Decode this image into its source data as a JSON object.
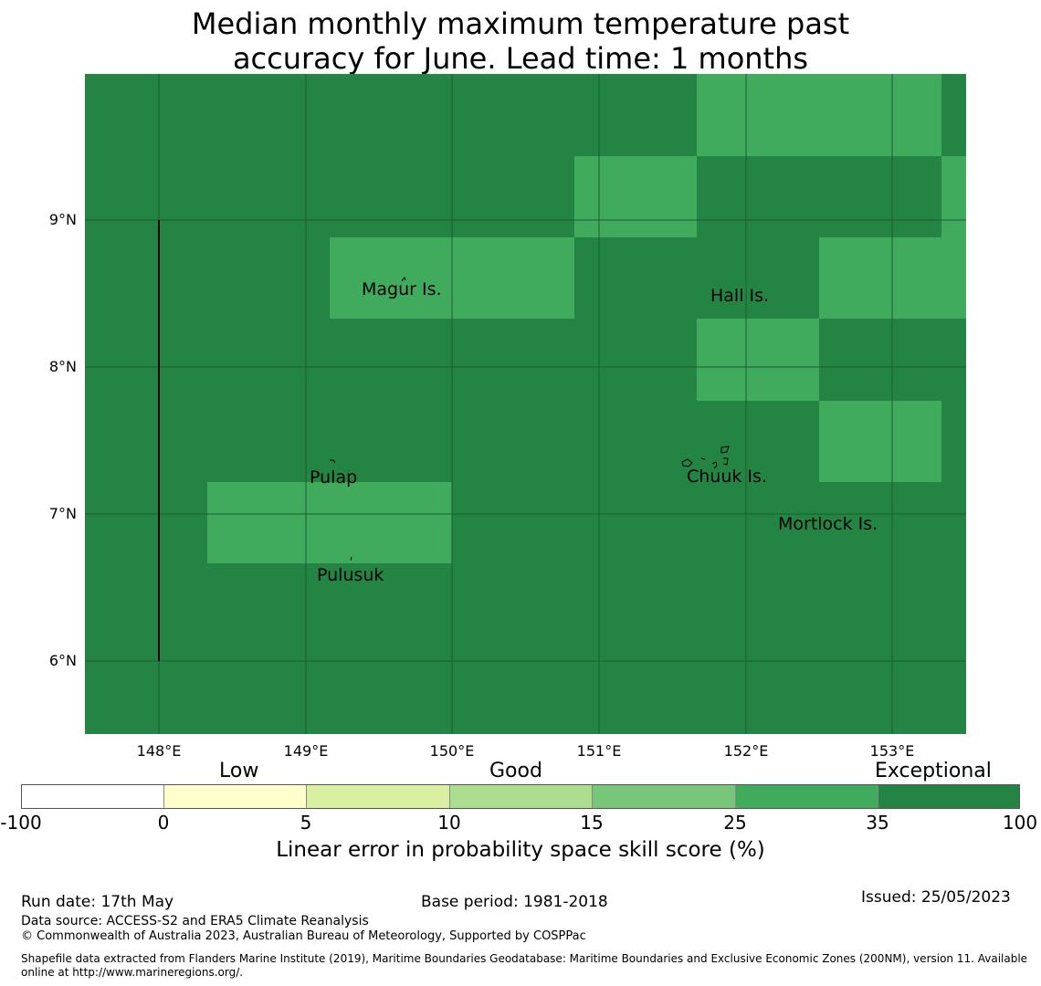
{
  "title_line1": "Median monthly maximum temperature past",
  "title_line2": "accuracy for June. Lead time: 1 months",
  "map": {
    "lat_ticks": [
      "9°N",
      "8°N",
      "7°N",
      "6°N"
    ],
    "lon_ticks": [
      "148°E",
      "149°E",
      "150°E",
      "151°E",
      "152°E",
      "153°E"
    ],
    "places": [
      "Magur Is.",
      "Hall Is.",
      "Pulap",
      "Chuuk Is.",
      "Mortlock Is.",
      "Pulusuk"
    ],
    "colors": {
      "exceptional": "#238443",
      "good_high": "#41ab5d",
      "grid": "#1a5e2e"
    }
  },
  "legend": {
    "categories": [
      "Low",
      "Good",
      "Exceptional"
    ],
    "ticks": [
      "-100",
      "0",
      "5",
      "10",
      "15",
      "25",
      "35",
      "100"
    ],
    "colors": [
      "#ffffff",
      "#ffffcc",
      "#d9f0a3",
      "#addd8e",
      "#78c679",
      "#41ab5d",
      "#238443"
    ],
    "label": "Linear error in probability space skill score (%)"
  },
  "footer": {
    "run_date": "Run date: 17th May",
    "base_period": "Base period: 1981-2018",
    "issued": "Issued: 25/05/2023",
    "data_source": "Data source: ACCESS-S2 and ERA5 Climate Reanalysis",
    "copyright": "© Commonwealth of Australia 2023, Australian Bureau of Meteorology, Supported by COSPPac",
    "shapefile_line1": "Shapefile data extracted from Flanders Marine Institute (2019), Maritime Boundaries Geodatabase: Maritime Boundaries and Exclusive Economic Zones (200NM), version 11. Available",
    "shapefile_line2": "online at http://www.marineregions.org/."
  }
}
